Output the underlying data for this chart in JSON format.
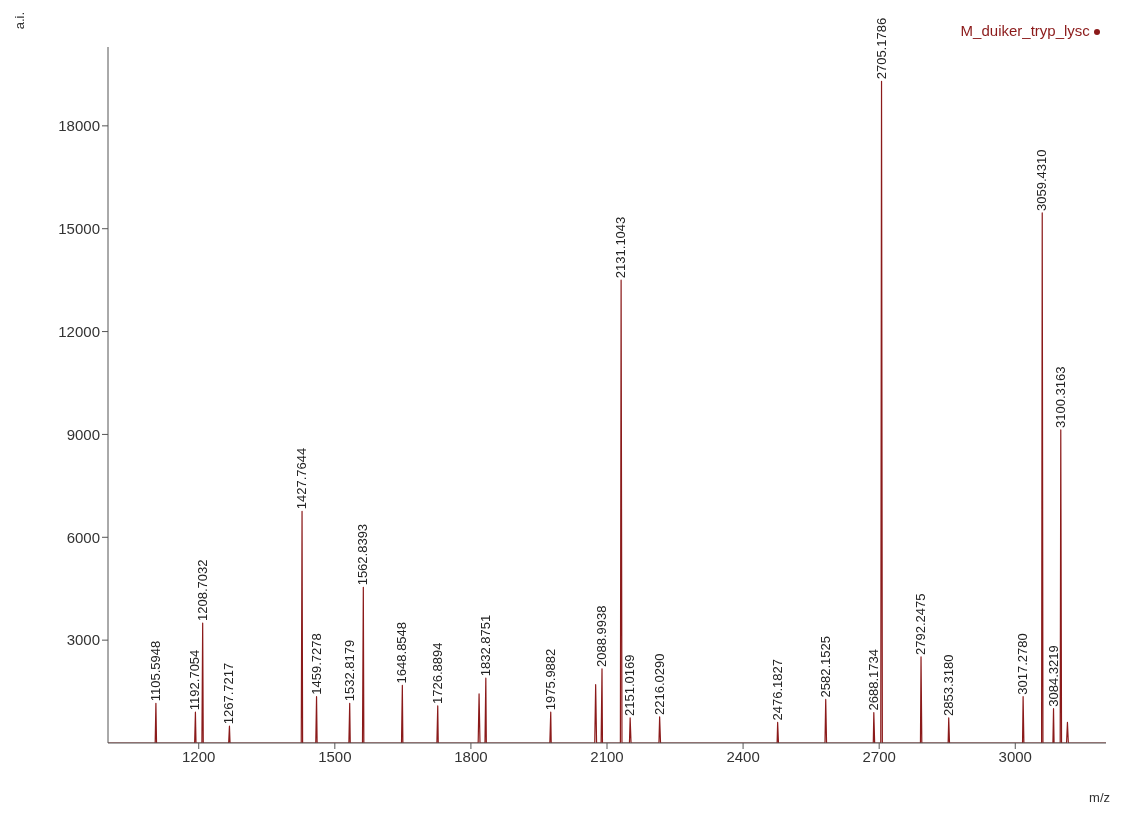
{
  "chart_data": {
    "type": "line",
    "xlabel": "m/z",
    "ylabel": "a.i.",
    "xlim": [
      1000,
      3200
    ],
    "xticks": [
      1200,
      1500,
      1800,
      2100,
      2400,
      2700,
      3000
    ],
    "ylim": [
      0,
      20300
    ],
    "yticks": [
      3000,
      6000,
      9000,
      12000,
      15000,
      18000
    ],
    "grid": false,
    "legend": "top right",
    "marker": "none",
    "line_style": "solid",
    "series": [
      {
        "name": "M_duiker_tryp_lysc",
        "color": "#8b1a1a",
        "x": [
          1000,
          1104,
          1105.5948,
          1107,
          1191,
          1192.7054,
          1194,
          1207,
          1208.7032,
          1210,
          1266,
          1267.7217,
          1269,
          1426,
          1427.7644,
          1429,
          1458,
          1459.7278,
          1461,
          1531,
          1532.8179,
          1534,
          1561,
          1562.8393,
          1564,
          1647,
          1648.8548,
          1650,
          1725,
          1726.8894,
          1728,
          1816,
          1818,
          1820,
          1831,
          1832.8751,
          1834,
          1974,
          1975.9882,
          1977,
          2073,
          2075,
          2077,
          2087,
          2088.9938,
          2090,
          2129.5,
          2131.1043,
          2133,
          2149.5,
          2151.0169,
          2153,
          2214.5,
          2216.029,
          2218,
          2475,
          2476.1827,
          2478,
          2580.5,
          2582.1525,
          2584,
          2687,
          2688.1734,
          2690,
          2703.5,
          2705.1786,
          2707,
          2791,
          2792.2475,
          2794,
          2852,
          2853.318,
          2855,
          3016,
          3017.278,
          3019,
          3058,
          3059.431,
          3061,
          3083,
          3084.3219,
          3085.5,
          3099,
          3100.3163,
          3102,
          3113,
          3115,
          3117,
          3200
        ],
        "values": [
          0,
          0,
          1160,
          0,
          0,
          900,
          0,
          0,
          3500,
          0,
          0,
          490,
          0,
          0,
          6760,
          0,
          0,
          1350,
          0,
          0,
          1160,
          0,
          0,
          4540,
          0,
          0,
          1680,
          0,
          0,
          1080,
          0,
          0,
          1430,
          0,
          0,
          1890,
          0,
          0,
          900,
          0,
          0,
          1700,
          0,
          0,
          2160,
          0,
          0,
          13500,
          0,
          0,
          730,
          0,
          0,
          760,
          0,
          0,
          600,
          0,
          0,
          1270,
          0,
          0,
          890,
          0,
          0,
          19300,
          0,
          0,
          2510,
          0,
          0,
          730,
          0,
          0,
          1350,
          0,
          0,
          15460,
          0,
          0,
          1000,
          0,
          0,
          9130,
          0,
          0,
          600,
          0,
          0
        ]
      }
    ],
    "annotations": [
      {
        "text": "1105.5948",
        "x": 1105.5948,
        "y": 1160
      },
      {
        "text": "1192.7054",
        "x": 1192.7054,
        "y": 900
      },
      {
        "text": "1208.7032",
        "x": 1208.7032,
        "y": 3500
      },
      {
        "text": "1267.7217",
        "x": 1267.7217,
        "y": 490
      },
      {
        "text": "1427.7644",
        "x": 1427.7644,
        "y": 6760
      },
      {
        "text": "1459.7278",
        "x": 1459.7278,
        "y": 1350
      },
      {
        "text": "1532.8179",
        "x": 1532.8179,
        "y": 1160
      },
      {
        "text": "1562.8393",
        "x": 1562.8393,
        "y": 4540
      },
      {
        "text": "1648.8548",
        "x": 1648.8548,
        "y": 1680
      },
      {
        "text": "1726.8894",
        "x": 1726.8894,
        "y": 1080
      },
      {
        "text": "1832.8751",
        "x": 1832.8751,
        "y": 1890
      },
      {
        "text": "1975.9882",
        "x": 1975.9882,
        "y": 900
      },
      {
        "text": "2088.9938",
        "x": 2088.9938,
        "y": 2160
      },
      {
        "text": "2131.1043",
        "x": 2131.1043,
        "y": 13500
      },
      {
        "text": "2151.0169",
        "x": 2151.0169,
        "y": 730
      },
      {
        "text": "2216.0290",
        "x": 2216.029,
        "y": 760
      },
      {
        "text": "2476.1827",
        "x": 2476.1827,
        "y": 600
      },
      {
        "text": "2582.1525",
        "x": 2582.1525,
        "y": 1270
      },
      {
        "text": "2688.1734",
        "x": 2688.1734,
        "y": 890
      },
      {
        "text": "2705.1786",
        "x": 2705.1786,
        "y": 19300
      },
      {
        "text": "2792.2475",
        "x": 2792.2475,
        "y": 2510
      },
      {
        "text": "2853.3180",
        "x": 2853.318,
        "y": 730
      },
      {
        "text": "3017.2780",
        "x": 3017.278,
        "y": 1350
      },
      {
        "text": "3059.4310",
        "x": 3059.431,
        "y": 15460
      },
      {
        "text": "3084.3219",
        "x": 3084.3219,
        "y": 1000
      },
      {
        "text": "3100.3163",
        "x": 3100.3163,
        "y": 9130
      }
    ]
  }
}
